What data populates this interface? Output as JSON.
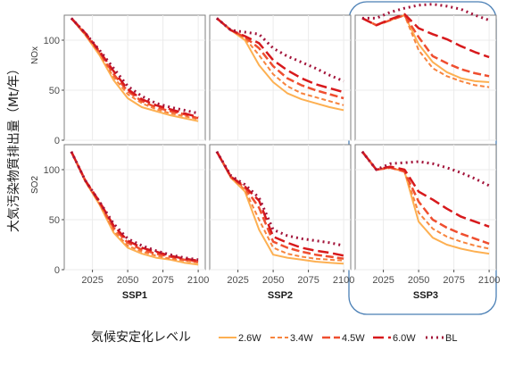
{
  "chart_data": {
    "type": "line",
    "ylabel": "大気汚染物質排出量（Mt/年）",
    "x_ticks": [
      2025,
      2050,
      2075,
      2100
    ],
    "xlim": [
      2005,
      2105
    ],
    "ylim": [
      0,
      125
    ],
    "y_ticks": [
      0,
      50,
      100
    ],
    "columns": [
      "SSP1",
      "SSP2",
      "SSP3"
    ],
    "rows": [
      "NOx",
      "SO2"
    ],
    "highlighted_column": "SSP3",
    "legend": {
      "title": "気候安定化レベル",
      "position": "bottom"
    },
    "series_styles": [
      {
        "name": "2.6W",
        "color": "#fdb052",
        "dash": "",
        "width": 2
      },
      {
        "name": "3.4W",
        "color": "#f7843e",
        "dash": "5 3",
        "width": 2
      },
      {
        "name": "4.5W",
        "color": "#ef4e2f",
        "dash": "9 4",
        "width": 2.5
      },
      {
        "name": "6.0W",
        "color": "#d7191c",
        "dash": "12 5",
        "width": 2.5
      },
      {
        "name": "BL",
        "color": "#a3143a",
        "dash": "2 4",
        "width": 3
      }
    ],
    "x": [
      2010,
      2020,
      2030,
      2040,
      2050,
      2060,
      2070,
      2080,
      2090,
      2100
    ],
    "panels": [
      {
        "row": "NOx",
        "column": "SSP1",
        "series": [
          {
            "name": "2.6W",
            "values": [
              122,
              105,
              85,
              60,
              42,
              33,
              29,
              25,
              22,
              19
            ]
          },
          {
            "name": "3.4W",
            "values": [
              122,
              105,
              87,
              63,
              46,
              37,
              31,
              27,
              24,
              21
            ]
          },
          {
            "name": "4.5W",
            "values": [
              122,
              106,
              88,
              66,
              49,
              39,
              33,
              29,
              26,
              22
            ]
          },
          {
            "name": "6.0W",
            "values": [
              122,
              107,
              89,
              69,
              51,
              41,
              35,
              31,
              27,
              23
            ]
          },
          {
            "name": "BL",
            "values": [
              122,
              107,
              90,
              72,
              54,
              44,
              37,
              33,
              30,
              27
            ]
          }
        ]
      },
      {
        "row": "NOx",
        "column": "SSP2",
        "series": [
          {
            "name": "2.6W",
            "values": [
              122,
              110,
              100,
              75,
              58,
              47,
              41,
              37,
              33,
              30
            ]
          },
          {
            "name": "3.4W",
            "values": [
              122,
              110,
              102,
              85,
              66,
              54,
              47,
              43,
              39,
              35
            ]
          },
          {
            "name": "4.5W",
            "values": [
              122,
              110,
              103,
              92,
              74,
              62,
              55,
              50,
              46,
              42
            ]
          },
          {
            "name": "6.0W",
            "values": [
              122,
              110,
              104,
              97,
              80,
              70,
              62,
              56,
              52,
              48
            ]
          },
          {
            "name": "BL",
            "values": [
              122,
              110,
              108,
              106,
              92,
              84,
              78,
              72,
              65,
              59
            ]
          }
        ]
      },
      {
        "row": "NOx",
        "column": "SSP3",
        "series": [
          {
            "name": "2.6W",
            "values": [
              122,
              115,
              120,
              125,
              96,
              78,
              68,
              62,
              59,
              58
            ]
          },
          {
            "name": "3.4W",
            "values": [
              122,
              115,
              120,
              125,
              90,
              72,
              64,
              59,
              55,
              53
            ]
          },
          {
            "name": "4.5W",
            "values": [
              122,
              115,
              120,
              125,
              103,
              84,
              77,
              71,
              67,
              64
            ]
          },
          {
            "name": "6.0W",
            "values": [
              122,
              115,
              121,
              126,
              112,
              106,
              101,
              94,
              88,
              83
            ]
          },
          {
            "name": "BL",
            "values": [
              122,
              122,
              128,
              132,
              135,
              136,
              134,
              131,
              125,
              120
            ]
          }
        ]
      },
      {
        "row": "SO2",
        "column": "SSP1",
        "series": [
          {
            "name": "2.6W",
            "values": [
              118,
              88,
              65,
              37,
              22,
              16,
              12,
              10,
              7,
              5
            ]
          },
          {
            "name": "3.4W",
            "values": [
              118,
              88,
              66,
              39,
              24,
              18,
              14,
              11,
              9,
              7
            ]
          },
          {
            "name": "4.5W",
            "values": [
              118,
              89,
              67,
              42,
              27,
              20,
              16,
              13,
              10,
              8
            ]
          },
          {
            "name": "6.0W",
            "values": [
              118,
              89,
              68,
              44,
              29,
              22,
              18,
              14,
              11,
              9
            ]
          },
          {
            "name": "BL",
            "values": [
              118,
              89,
              68,
              46,
              31,
              24,
              19,
              15,
              12,
              10
            ]
          }
        ]
      },
      {
        "row": "SO2",
        "column": "SSP2",
        "series": [
          {
            "name": "2.6W",
            "values": [
              118,
              92,
              78,
              40,
              15,
              12,
              10,
              8,
              7,
              6
            ]
          },
          {
            "name": "3.4W",
            "values": [
              118,
              92,
              80,
              50,
              22,
              16,
              13,
              11,
              10,
              9
            ]
          },
          {
            "name": "4.5W",
            "values": [
              118,
              93,
              82,
              62,
              28,
              22,
              18,
              15,
              13,
              11
            ]
          },
          {
            "name": "6.0W",
            "values": [
              118,
              93,
              83,
              69,
              33,
              27,
              22,
              19,
              17,
              14
            ]
          },
          {
            "name": "BL",
            "values": [
              118,
              94,
              85,
              72,
              40,
              34,
              31,
              29,
              27,
              24
            ]
          }
        ]
      },
      {
        "row": "SO2",
        "column": "SSP3",
        "series": [
          {
            "name": "2.6W",
            "values": [
              118,
              100,
              102,
              98,
              48,
              32,
              25,
              21,
              18,
              16
            ]
          },
          {
            "name": "3.4W",
            "values": [
              118,
              100,
              102,
              98,
              57,
              41,
              33,
              28,
              24,
              21
            ]
          },
          {
            "name": "4.5W",
            "values": [
              118,
              100,
              102,
              98,
              68,
              50,
              42,
              36,
              31,
              26
            ]
          },
          {
            "name": "6.0W",
            "values": [
              118,
              100,
              103,
              100,
              78,
              70,
              61,
              53,
              48,
              43
            ]
          },
          {
            "name": "BL",
            "values": [
              118,
              100,
              106,
              107,
              108,
              106,
              102,
              97,
              91,
              84
            ]
          }
        ]
      }
    ]
  }
}
